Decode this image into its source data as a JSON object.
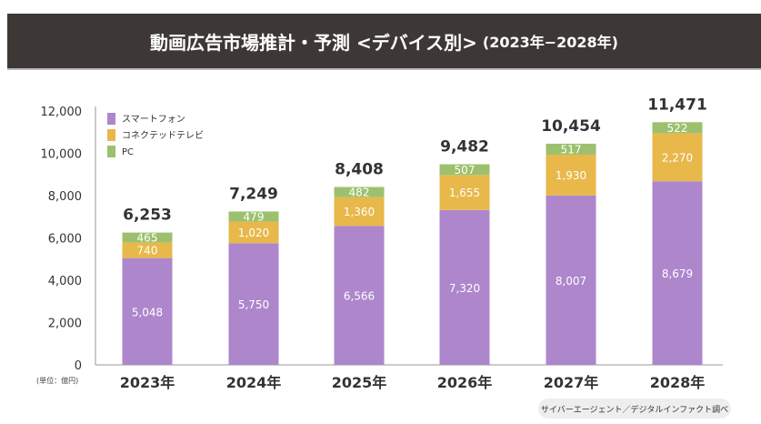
{
  "chart_data": {
    "type": "bar",
    "stacked": true,
    "title": "動画広告市場推計・予測 <デバイス別>",
    "subtitle": "(2023年−2028年)",
    "categories": [
      "2023年",
      "2024年",
      "2025年",
      "2026年",
      "2027年",
      "2028年"
    ],
    "series": [
      {
        "name": "スマートフォン",
        "color": "#ad86cc",
        "values": [
          5048,
          5750,
          6566,
          7320,
          8007,
          8679
        ]
      },
      {
        "name": "コネクテッドテレビ",
        "color": "#e8b84a",
        "values": [
          740,
          1020,
          1360,
          1655,
          1930,
          2270
        ]
      },
      {
        "name": "PC",
        "color": "#9dc06e",
        "values": [
          465,
          479,
          482,
          507,
          517,
          522
        ]
      }
    ],
    "totals": [
      "6,253",
      "7,249",
      "8,408",
      "9,482",
      "10,454",
      "11,471"
    ],
    "value_labels": [
      [
        "5,048",
        "5,750",
        "6,566",
        "7,320",
        "8,007",
        "8,679"
      ],
      [
        "740",
        "1,020",
        "1,360",
        "1,655",
        "1,930",
        "2,270"
      ],
      [
        "465",
        "479",
        "482",
        "507",
        "517",
        "522"
      ]
    ],
    "yticks": [
      0,
      2000,
      4000,
      6000,
      8000,
      10000,
      12000
    ],
    "ytick_labels": [
      "0",
      "2,000",
      "4,000",
      "6,000",
      "8,000",
      "10,000",
      "12,000"
    ],
    "ylim": [
      0,
      12000
    ],
    "unit": "(単位：億円)",
    "legend_position": "top-left",
    "source": "サイバーエージェント／デジタルインファクト調べ"
  }
}
